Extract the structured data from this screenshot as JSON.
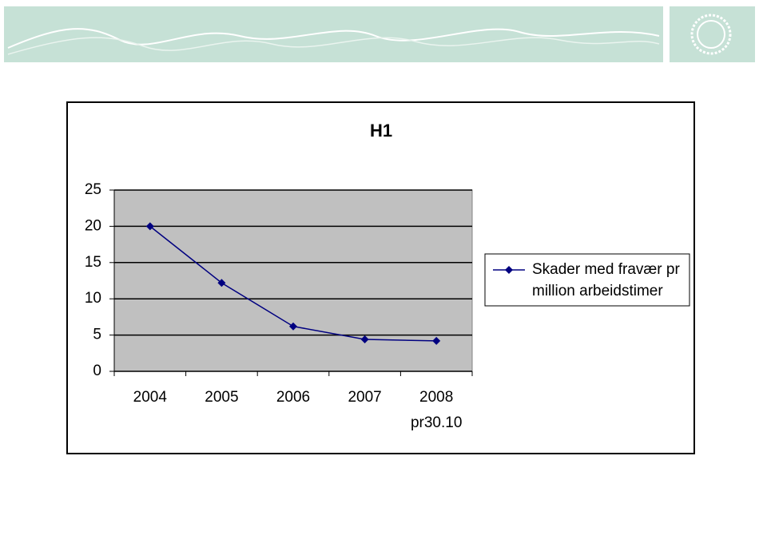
{
  "chart_data": {
    "type": "line",
    "title": "H1",
    "categories": [
      "2004",
      "2005",
      "2006",
      "2007",
      "2008 pr30.10"
    ],
    "series": [
      {
        "name": "Skader med fravær pr million arbeidstimer",
        "color": "#000080",
        "values": [
          20,
          12.2,
          6.2,
          4.4,
          4.2
        ]
      }
    ],
    "ylim": [
      0,
      25
    ],
    "yticks": [
      0,
      5,
      10,
      15,
      20,
      25
    ],
    "grid": true,
    "legend": "right"
  }
}
